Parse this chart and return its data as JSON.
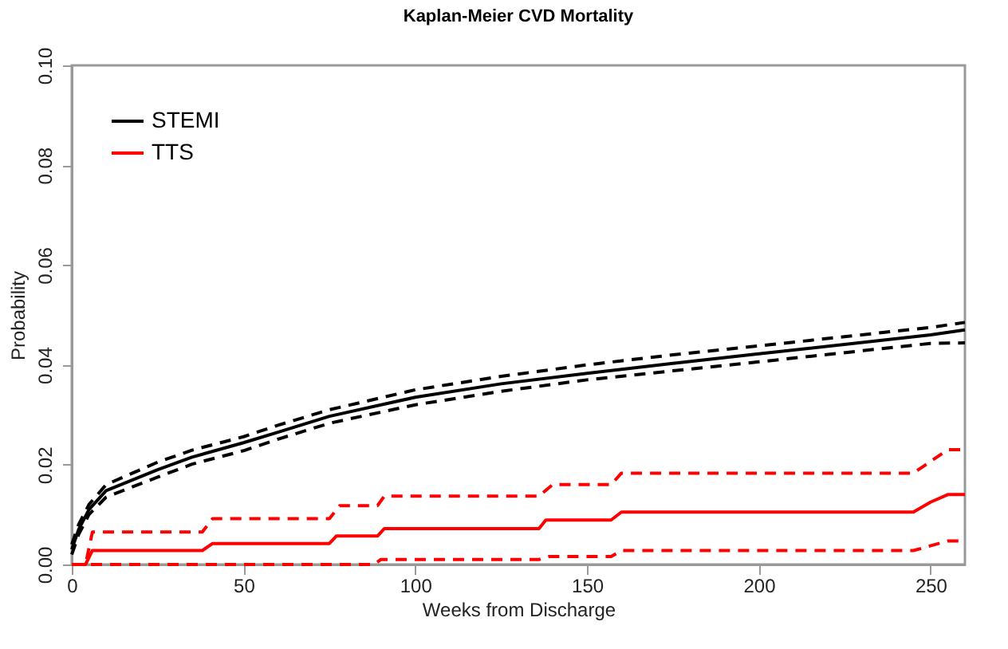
{
  "chart_data": {
    "type": "line",
    "title": "Kaplan-Meier CVD Mortality",
    "xlabel": "Weeks from Discharge",
    "ylabel": "Probability",
    "xlim": [
      0,
      260
    ],
    "xticks": [
      0,
      50,
      100,
      150,
      200,
      250
    ],
    "ylim": [
      0,
      0.1
    ],
    "yticks": [
      {
        "value": 0,
        "label": "0.00"
      },
      {
        "value": 0.02,
        "label": "0.02"
      },
      {
        "value": 0.04,
        "label": "0.04"
      },
      {
        "value": 0.06,
        "label": "0.06"
      },
      {
        "value": 0.08,
        "label": "0.08"
      },
      {
        "value": 0.1,
        "label": "0.10"
      }
    ],
    "grid": false,
    "legend": "top left",
    "marker": "none",
    "series": [
      {
        "name": "STEMI",
        "color": "#000000",
        "line_style": "solid",
        "x": [
          0,
          2,
          5,
          10,
          25,
          35,
          50,
          60,
          75,
          100,
          125,
          150,
          175,
          200,
          250,
          260
        ],
        "values": [
          0.003,
          0.007,
          0.011,
          0.0148,
          0.019,
          0.0215,
          0.0244,
          0.0265,
          0.0297,
          0.0335,
          0.0362,
          0.0383,
          0.0403,
          0.0422,
          0.046,
          0.047
        ]
      },
      {
        "color": "#000000",
        "line_style": "dashed",
        "x": [
          0,
          2,
          5,
          10,
          25,
          35,
          50,
          60,
          75,
          100,
          125,
          150,
          175,
          200,
          250,
          260
        ],
        "values": [
          0.004,
          0.008,
          0.012,
          0.016,
          0.0205,
          0.0229,
          0.0256,
          0.0279,
          0.031,
          0.035,
          0.0377,
          0.04,
          0.042,
          0.0438,
          0.0475,
          0.0485
        ]
      },
      {
        "color": "#000000",
        "line_style": "dashed",
        "x": [
          0,
          2,
          5,
          10,
          25,
          35,
          50,
          60,
          75,
          100,
          125,
          150,
          175,
          200,
          250,
          260
        ],
        "values": [
          0.002,
          0.006,
          0.01,
          0.0135,
          0.0175,
          0.0201,
          0.0228,
          0.0251,
          0.0283,
          0.032,
          0.0347,
          0.037,
          0.0388,
          0.0406,
          0.0443,
          0.0444
        ]
      },
      {
        "name": "TTS",
        "color": "#ff0000",
        "line_style": "solid",
        "x": [
          0,
          4,
          6,
          38,
          41,
          75,
          77,
          89,
          91,
          136,
          138,
          157,
          160,
          245,
          250,
          255,
          260
        ],
        "values": [
          0,
          0,
          0.0028,
          0.0028,
          0.0042,
          0.0042,
          0.0057,
          0.0057,
          0.0072,
          0.0072,
          0.0089,
          0.0089,
          0.0105,
          0.0105,
          0.0125,
          0.014,
          0.014
        ]
      },
      {
        "color": "#ff0000",
        "line_style": "dashed",
        "x": [
          0,
          4,
          6,
          38,
          41,
          75,
          78,
          89,
          91,
          136,
          140,
          157,
          160,
          245,
          255,
          260
        ],
        "values": [
          0,
          0,
          0.0065,
          0.0065,
          0.0092,
          0.0092,
          0.0118,
          0.0118,
          0.0137,
          0.0137,
          0.016,
          0.016,
          0.0183,
          0.0183,
          0.023,
          0.023
        ]
      },
      {
        "color": "#ff0000",
        "line_style": "dashed",
        "x": [
          0,
          88,
          90,
          136,
          139,
          157,
          160,
          245,
          255,
          260
        ],
        "values": [
          0,
          0,
          0.001,
          0.001,
          0.0016,
          0.0016,
          0.0028,
          0.0028,
          0.0047,
          0.0047
        ]
      }
    ]
  }
}
